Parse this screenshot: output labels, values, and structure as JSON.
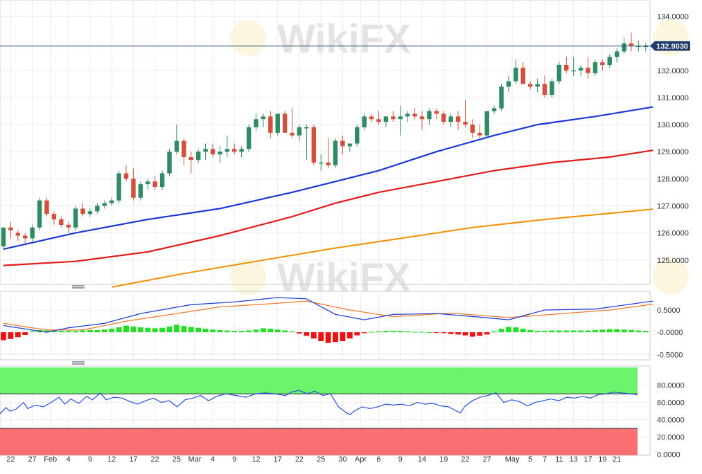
{
  "colors": {
    "up": "#2e8b64",
    "down": "#d2503c",
    "sma_fast": "#1c37d6",
    "sma_mid": "#e31b1b",
    "sma_slow": "#f28f00",
    "macd": "#2440d8",
    "signal": "#f07a2a",
    "hist_pos": "#22e022",
    "hist_neg": "#ee1111",
    "rsi": "#2451d8",
    "overbought": "#6cf56c",
    "oversold": "#fa6f6f",
    "price_line": "#1f3a6b",
    "grid": "#e9ecf1"
  },
  "watermark": {
    "text": "WikiFX"
  },
  "chart_data": [
    {
      "id": "price",
      "type": "candlestick",
      "ylim": [
        124.1,
        134.6
      ],
      "y_ticks": [
        "134.0000",
        "132.0000",
        "131.0000",
        "130.0000",
        "129.0000",
        "128.0000",
        "127.0000",
        "126.0000",
        "125.0000"
      ],
      "y_tick_values": [
        134,
        132,
        131,
        130,
        129,
        128,
        127,
        126,
        125
      ],
      "last_price_label": "132.9030",
      "last_price": 132.903,
      "candles": [
        [
          125.5,
          126.2,
          125.4,
          126.2
        ],
        [
          126.2,
          126.4,
          125.8,
          126.1
        ],
        [
          126.0,
          126.1,
          125.7,
          125.9
        ],
        [
          125.9,
          126.0,
          125.6,
          125.8
        ],
        [
          125.8,
          126.3,
          125.7,
          126.2
        ],
        [
          126.2,
          127.3,
          126.1,
          127.2
        ],
        [
          127.2,
          127.3,
          126.6,
          126.7
        ],
        [
          126.7,
          126.8,
          126.3,
          126.5
        ],
        [
          126.5,
          126.6,
          126.2,
          126.3
        ],
        [
          126.3,
          126.4,
          126.0,
          126.2
        ],
        [
          126.2,
          127.0,
          126.1,
          126.9
        ],
        [
          126.9,
          127.1,
          126.6,
          126.7
        ],
        [
          126.7,
          126.9,
          126.6,
          126.8
        ],
        [
          126.8,
          127.1,
          126.7,
          127.0
        ],
        [
          127.0,
          127.2,
          126.9,
          127.1
        ],
        [
          127.1,
          127.3,
          127.0,
          127.2
        ],
        [
          127.2,
          128.3,
          127.1,
          128.2
        ],
        [
          128.2,
          128.5,
          127.9,
          128.0
        ],
        [
          128.0,
          128.4,
          127.2,
          127.3
        ],
        [
          127.3,
          127.9,
          127.2,
          127.8
        ],
        [
          127.8,
          128.0,
          127.6,
          127.9
        ],
        [
          127.9,
          128.1,
          127.6,
          127.7
        ],
        [
          127.7,
          128.3,
          127.6,
          128.2
        ],
        [
          128.2,
          129.1,
          128.1,
          129.0
        ],
        [
          129.0,
          130.0,
          128.9,
          129.4
        ],
        [
          129.4,
          129.5,
          128.5,
          128.8
        ],
        [
          128.8,
          129.0,
          128.2,
          128.7
        ],
        [
          128.7,
          129.1,
          128.6,
          129.0
        ],
        [
          129.0,
          129.3,
          128.7,
          129.1
        ],
        [
          129.1,
          129.3,
          128.8,
          128.9
        ],
        [
          128.9,
          129.2,
          128.6,
          129.0
        ],
        [
          129.0,
          129.6,
          128.8,
          129.1
        ],
        [
          129.1,
          129.3,
          128.9,
          129.0
        ],
        [
          129.0,
          129.2,
          128.8,
          129.1
        ],
        [
          129.1,
          130.0,
          129.0,
          129.9
        ],
        [
          129.9,
          130.4,
          129.8,
          130.2
        ],
        [
          130.2,
          130.4,
          129.9,
          130.3
        ],
        [
          130.3,
          130.5,
          129.5,
          129.7
        ],
        [
          129.7,
          130.4,
          129.6,
          130.4
        ],
        [
          130.4,
          130.5,
          129.7,
          129.7
        ],
        [
          129.7,
          130.6,
          129.5,
          129.6
        ],
        [
          129.6,
          130.0,
          129.4,
          129.9
        ],
        [
          129.9,
          130.0,
          128.7,
          129.9
        ],
        [
          129.9,
          130.0,
          128.5,
          128.6
        ],
        [
          128.6,
          128.9,
          128.3,
          128.6
        ],
        [
          128.6,
          129.5,
          128.4,
          128.5
        ],
        [
          128.5,
          129.5,
          128.4,
          129.4
        ],
        [
          129.4,
          129.6,
          128.9,
          129.2
        ],
        [
          129.2,
          129.3,
          129.0,
          129.3
        ],
        [
          129.3,
          130.0,
          129.2,
          129.9
        ],
        [
          129.9,
          130.4,
          129.8,
          130.3
        ],
        [
          130.3,
          130.4,
          130.1,
          130.2
        ],
        [
          130.2,
          130.5,
          130.0,
          130.1
        ],
        [
          130.1,
          130.3,
          129.9,
          130.3
        ],
        [
          130.3,
          130.5,
          130.1,
          130.2
        ],
        [
          130.2,
          130.7,
          129.6,
          130.3
        ],
        [
          130.3,
          130.5,
          130.1,
          130.4
        ],
        [
          130.4,
          130.6,
          130.2,
          130.3
        ],
        [
          130.3,
          130.5,
          129.8,
          130.2
        ],
        [
          130.2,
          130.6,
          130.0,
          130.5
        ],
        [
          130.5,
          130.6,
          130.2,
          130.4
        ],
        [
          130.4,
          130.5,
          130.0,
          130.1
        ],
        [
          130.1,
          130.4,
          129.9,
          130.3
        ],
        [
          130.3,
          130.5,
          129.8,
          130.1
        ],
        [
          130.1,
          130.9,
          129.9,
          130.0
        ],
        [
          130.0,
          130.2,
          129.5,
          129.7
        ],
        [
          129.7,
          130.0,
          129.5,
          129.6
        ],
        [
          129.6,
          130.5,
          129.5,
          130.5
        ],
        [
          130.5,
          130.7,
          130.4,
          130.6
        ],
        [
          130.6,
          131.5,
          130.5,
          131.4
        ],
        [
          131.4,
          131.8,
          131.2,
          131.6
        ],
        [
          131.6,
          132.4,
          131.5,
          132.1
        ],
        [
          132.1,
          132.3,
          131.6,
          131.5
        ],
        [
          131.5,
          131.6,
          131.3,
          131.4
        ],
        [
          131.4,
          131.7,
          131.2,
          131.5
        ],
        [
          131.5,
          131.8,
          131.0,
          131.1
        ],
        [
          131.1,
          131.7,
          131.0,
          131.6
        ],
        [
          131.6,
          132.3,
          131.5,
          132.2
        ],
        [
          132.2,
          132.5,
          131.9,
          132.0
        ],
        [
          132.0,
          132.5,
          131.8,
          132.0
        ],
        [
          132.0,
          132.2,
          131.8,
          132.1
        ],
        [
          132.1,
          132.5,
          131.7,
          131.9
        ],
        [
          131.9,
          132.4,
          131.8,
          132.3
        ],
        [
          132.3,
          132.4,
          132.0,
          132.2
        ],
        [
          132.2,
          132.6,
          132.1,
          132.5
        ],
        [
          132.5,
          132.8,
          132.3,
          132.7
        ],
        [
          132.7,
          133.2,
          132.6,
          133.0
        ],
        [
          133.0,
          133.4,
          132.7,
          132.9
        ],
        [
          132.9,
          133.1,
          132.7,
          132.9
        ],
        [
          132.9,
          133.0,
          132.7,
          132.9
        ]
      ],
      "sma_fast": [
        [
          0,
          125.4
        ],
        [
          10,
          126.0
        ],
        [
          20,
          126.5
        ],
        [
          30,
          126.9
        ],
        [
          40,
          127.5
        ],
        [
          46,
          127.9
        ],
        [
          52,
          128.3
        ],
        [
          60,
          129.0
        ],
        [
          68,
          129.6
        ],
        [
          74,
          130.0
        ],
        [
          82,
          130.3
        ],
        [
          90,
          130.65
        ]
      ],
      "sma_mid": [
        [
          0,
          124.8
        ],
        [
          10,
          124.95
        ],
        [
          20,
          125.3
        ],
        [
          30,
          125.9
        ],
        [
          40,
          126.6
        ],
        [
          46,
          127.1
        ],
        [
          52,
          127.5
        ],
        [
          60,
          127.9
        ],
        [
          68,
          128.3
        ],
        [
          76,
          128.6
        ],
        [
          84,
          128.8
        ],
        [
          90,
          129.05
        ]
      ],
      "sma_slow": [
        [
          15,
          124.0
        ],
        [
          25,
          124.5
        ],
        [
          35,
          124.95
        ],
        [
          45,
          125.4
        ],
        [
          55,
          125.8
        ],
        [
          65,
          126.2
        ],
        [
          75,
          126.5
        ],
        [
          85,
          126.75
        ],
        [
          90,
          126.88
        ]
      ]
    },
    {
      "id": "macd",
      "type": "line",
      "ylim": [
        -0.62,
        0.92
      ],
      "y_ticks": [
        "0.5000",
        "-0.0000",
        "-0.5000"
      ],
      "y_tick_values": [
        0.5,
        0.0,
        -0.5
      ],
      "macd": [
        [
          0,
          0.15
        ],
        [
          6,
          0.0
        ],
        [
          9,
          0.1
        ],
        [
          14,
          0.2
        ],
        [
          19,
          0.42
        ],
        [
          26,
          0.62
        ],
        [
          32,
          0.68
        ],
        [
          38,
          0.78
        ],
        [
          42,
          0.75
        ],
        [
          46,
          0.4
        ],
        [
          50,
          0.28
        ],
        [
          54,
          0.4
        ],
        [
          60,
          0.42
        ],
        [
          66,
          0.34
        ],
        [
          70,
          0.28
        ],
        [
          75,
          0.5
        ],
        [
          82,
          0.52
        ],
        [
          90,
          0.7
        ]
      ],
      "signal": [
        [
          0,
          0.2
        ],
        [
          6,
          0.05
        ],
        [
          11,
          0.05
        ],
        [
          17,
          0.25
        ],
        [
          24,
          0.42
        ],
        [
          30,
          0.57
        ],
        [
          37,
          0.64
        ],
        [
          42,
          0.7
        ],
        [
          48,
          0.5
        ],
        [
          54,
          0.35
        ],
        [
          62,
          0.43
        ],
        [
          70,
          0.33
        ],
        [
          76,
          0.4
        ],
        [
          84,
          0.5
        ],
        [
          90,
          0.63
        ]
      ],
      "histogram": [
        -0.18,
        -0.15,
        -0.11,
        -0.06,
        0.02,
        0.05,
        0.04,
        0.04,
        0.03,
        0.03,
        0.03,
        0.04,
        0.05,
        0.05,
        0.06,
        0.08,
        0.11,
        0.15,
        0.13,
        0.11,
        0.1,
        0.09,
        0.1,
        0.13,
        0.17,
        0.14,
        0.12,
        0.1,
        0.08,
        0.06,
        0.05,
        0.04,
        0.03,
        0.03,
        0.04,
        0.06,
        0.09,
        0.08,
        0.06,
        0.04,
        0.02,
        -0.03,
        -0.08,
        -0.14,
        -0.2,
        -0.24,
        -0.22,
        -0.2,
        -0.14,
        -0.07,
        -0.02,
        0.01,
        0.02,
        0.03,
        0.03,
        0.03,
        0.02,
        0.01,
        0.01,
        0.0,
        -0.01,
        -0.02,
        -0.04,
        -0.05,
        -0.07,
        -0.1,
        -0.08,
        -0.05,
        0.02,
        0.08,
        0.12,
        0.11,
        0.08,
        0.05,
        0.03,
        0.03,
        0.04,
        0.04,
        0.04,
        0.04,
        0.04,
        0.04,
        0.05,
        0.06,
        0.07,
        0.07,
        0.06,
        0.05,
        0.04,
        0.03
      ]
    },
    {
      "id": "rsi",
      "type": "line",
      "ylim": [
        -1,
        102
      ],
      "y_ticks": [
        "80.0000",
        "60.0000",
        "40.0000",
        "20.0000",
        "0.0000"
      ],
      "y_tick_values": [
        80,
        60,
        40,
        20,
        0
      ],
      "overbought": 70,
      "oversold": 30,
      "rsi": [
        [
          0,
          47
        ],
        [
          3,
          54
        ],
        [
          5,
          50
        ],
        [
          8,
          52
        ],
        [
          12,
          60
        ],
        [
          14,
          53
        ],
        [
          18,
          57
        ],
        [
          22,
          55
        ],
        [
          26,
          60
        ],
        [
          30,
          66
        ],
        [
          33,
          58
        ],
        [
          36,
          64
        ],
        [
          40,
          59
        ],
        [
          44,
          67
        ],
        [
          47,
          63
        ],
        [
          51,
          71
        ],
        [
          54,
          63
        ],
        [
          58,
          66
        ],
        [
          62,
          65
        ],
        [
          66,
          61
        ],
        [
          70,
          58
        ],
        [
          74,
          62
        ],
        [
          78,
          65
        ],
        [
          82,
          60
        ],
        [
          86,
          62
        ],
        [
          90,
          55
        ],
        [
          94,
          63
        ],
        [
          98,
          65
        ],
        [
          102,
          68
        ],
        [
          106,
          62
        ],
        [
          110,
          67
        ],
        [
          115,
          70
        ],
        [
          120,
          68
        ],
        [
          125,
          66
        ],
        [
          130,
          70
        ],
        [
          135,
          71
        ],
        [
          140,
          70
        ],
        [
          145,
          68
        ],
        [
          148,
          72
        ],
        [
          152,
          74
        ],
        [
          156,
          70
        ],
        [
          160,
          73
        ],
        [
          164,
          68
        ],
        [
          168,
          70
        ],
        [
          172,
          55
        ],
        [
          176,
          48
        ],
        [
          178,
          46
        ],
        [
          180,
          50
        ],
        [
          184,
          55
        ],
        [
          188,
          53
        ],
        [
          192,
          55
        ],
        [
          196,
          58
        ],
        [
          200,
          57
        ],
        [
          204,
          58
        ],
        [
          208,
          56
        ],
        [
          212,
          60
        ],
        [
          216,
          58
        ],
        [
          220,
          59
        ],
        [
          224,
          56
        ],
        [
          228,
          55
        ],
        [
          232,
          50
        ],
        [
          234,
          48
        ],
        [
          236,
          55
        ],
        [
          240,
          62
        ],
        [
          244,
          66
        ],
        [
          248,
          68
        ],
        [
          252,
          71
        ],
        [
          256,
          60
        ],
        [
          260,
          63
        ],
        [
          264,
          61
        ],
        [
          268,
          56
        ],
        [
          272,
          60
        ],
        [
          276,
          62
        ],
        [
          280,
          64
        ],
        [
          284,
          62
        ],
        [
          288,
          66
        ],
        [
          292,
          65
        ],
        [
          296,
          67
        ],
        [
          300,
          65
        ],
        [
          304,
          69
        ],
        [
          308,
          70
        ],
        [
          312,
          72
        ],
        [
          316,
          71
        ],
        [
          320,
          70
        ],
        [
          324,
          69
        ]
      ]
    }
  ],
  "x_axis": {
    "labels": [
      "22",
      "27",
      "Feb",
      "4",
      "9",
      "12",
      "17",
      "22",
      "25",
      "Mar",
      "4",
      "9",
      "12",
      "17",
      "22",
      "25",
      "30",
      "Apr",
      "6",
      "9",
      "14",
      "19",
      "22",
      "27",
      "May",
      "5",
      "7",
      "11",
      "13",
      "17",
      "19",
      "21"
    ],
    "label_index": [
      1,
      4,
      6.5,
      9,
      12,
      15,
      18,
      21,
      24,
      26.5,
      29,
      32,
      35,
      38,
      41,
      44,
      47,
      49.5,
      52,
      55,
      58,
      61,
      64,
      67,
      70.5,
      73,
      75,
      77,
      79,
      81,
      83,
      85
    ]
  }
}
